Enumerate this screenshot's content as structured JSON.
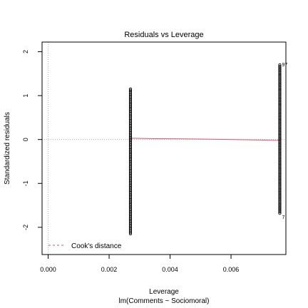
{
  "chart_data": {
    "type": "scatter",
    "title": "Residuals vs Leverage",
    "xlabel": "Leverage",
    "xlabel2": "lm(Comments ~ Sociomoral)",
    "ylabel": "Standardized residuals",
    "xlim": [
      -0.0002,
      0.0078
    ],
    "ylim": [
      -2.62,
      2.22
    ],
    "x_ticks": [
      0.0,
      0.002,
      0.004,
      0.006
    ],
    "x_tick_labels": [
      "0.000",
      "0.002",
      "0.004",
      "0.006"
    ],
    "y_ticks": [
      -2,
      -1,
      0,
      1,
      2
    ],
    "y_tick_labels": [
      "-2",
      "-1",
      "0",
      "1",
      "2"
    ],
    "grid": false,
    "reference_lines": {
      "x": 0,
      "y": 0
    },
    "legend": {
      "placement": "bottom-left",
      "label": "Cook's distance"
    },
    "series": [
      {
        "x": 0.0027,
        "y_min": -2.15,
        "y_max": 1.15,
        "n": 120
      },
      {
        "x": 0.0076,
        "y_min": -1.68,
        "y_max": 1.7,
        "n": 110
      }
    ],
    "smooth_line": {
      "x": [
        0.0027,
        0.0035,
        0.0052,
        0.0068,
        0.0076
      ],
      "y": [
        0.03,
        0.02,
        0.01,
        -0.01,
        -0.02
      ]
    },
    "annotations": [
      {
        "text": "97",
        "x": 0.0076,
        "y": 1.7
      },
      {
        "text": "7",
        "x": 0.0076,
        "y": -1.68
      }
    ],
    "colors": {
      "points": "#000000",
      "smooth": "#df536b",
      "reference": "#b0b0b0",
      "cooks": "#df536b"
    }
  }
}
